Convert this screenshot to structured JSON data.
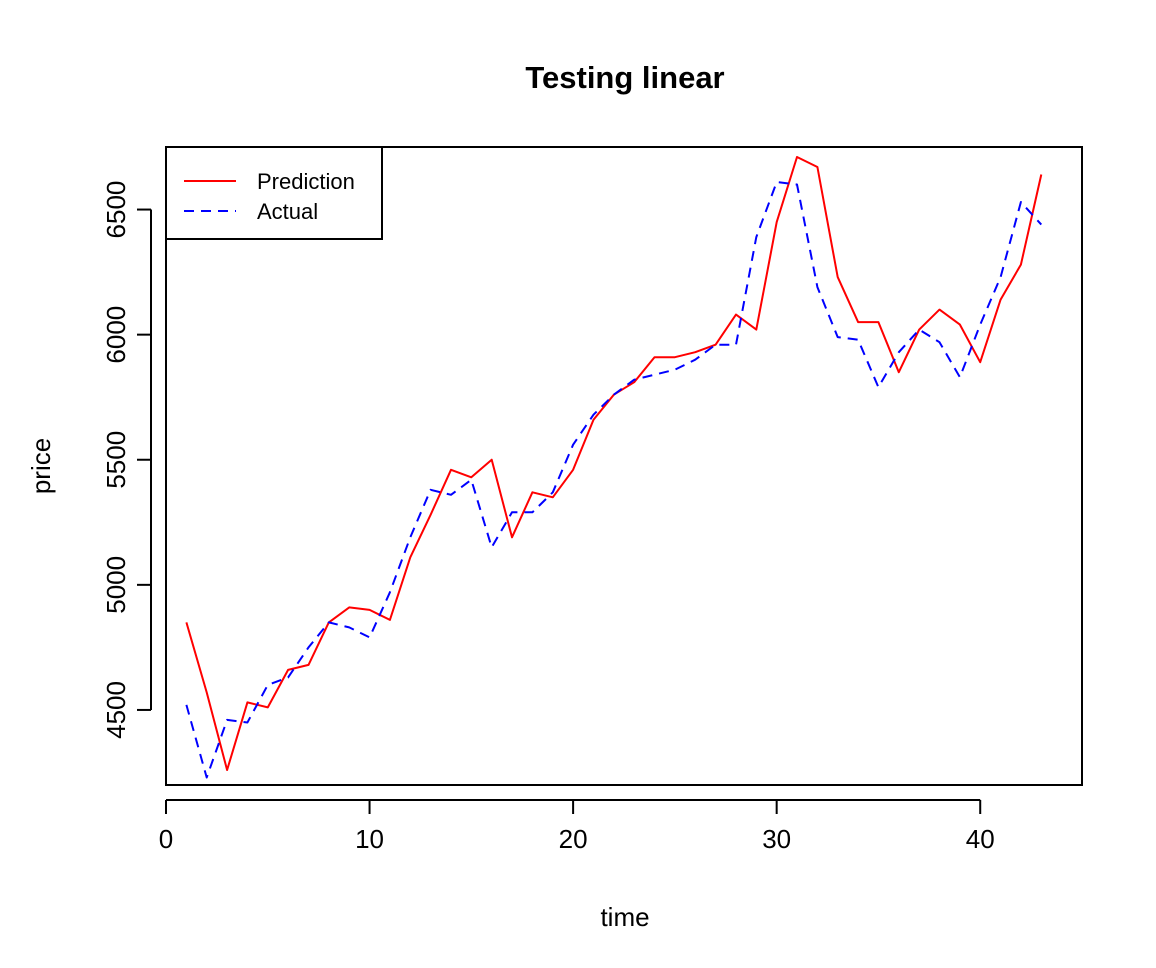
{
  "chart_data": {
    "type": "line",
    "title": "Testing linear",
    "xlabel": "time",
    "ylabel": "price",
    "xlim": [
      0,
      45
    ],
    "ylim": [
      4200,
      6750
    ],
    "xticks": [
      0,
      10,
      20,
      30,
      40
    ],
    "yticks": [
      4500,
      5000,
      5500,
      6000,
      6500
    ],
    "grid": false,
    "legend_position": "top-left",
    "x": [
      1,
      2,
      3,
      4,
      5,
      6,
      7,
      8,
      9,
      10,
      11,
      12,
      13,
      14,
      15,
      16,
      17,
      18,
      19,
      20,
      21,
      22,
      23,
      24,
      25,
      26,
      27,
      28,
      29,
      30,
      31,
      32,
      33,
      34,
      35,
      36,
      37,
      38,
      39,
      40,
      41,
      42,
      43
    ],
    "series": [
      {
        "name": "Prediction",
        "color": "#ff0000",
        "style": "solid",
        "values": [
          4850,
          4570,
          4260,
          4530,
          4510,
          4660,
          4680,
          4850,
          4910,
          4900,
          4860,
          5110,
          5280,
          5460,
          5430,
          5500,
          5190,
          5370,
          5350,
          5460,
          5660,
          5760,
          5810,
          5910,
          5910,
          5930,
          5960,
          6080,
          6020,
          6450,
          6710,
          6670,
          6230,
          6050,
          6050,
          5850,
          6020,
          6100,
          6040,
          5890,
          6140,
          6280,
          6640
        ]
      },
      {
        "name": "Actual",
        "color": "#0000ff",
        "style": "dashed",
        "values": [
          4520,
          4230,
          4460,
          4450,
          4600,
          4630,
          4750,
          4850,
          4830,
          4790,
          4970,
          5190,
          5380,
          5360,
          5420,
          5150,
          5290,
          5290,
          5370,
          5560,
          5680,
          5760,
          5820,
          5840,
          5860,
          5900,
          5960,
          5960,
          6390,
          6610,
          6600,
          6190,
          5990,
          5980,
          5790,
          5930,
          6020,
          5970,
          5830,
          6040,
          6230,
          6530,
          6440
        ]
      }
    ]
  }
}
